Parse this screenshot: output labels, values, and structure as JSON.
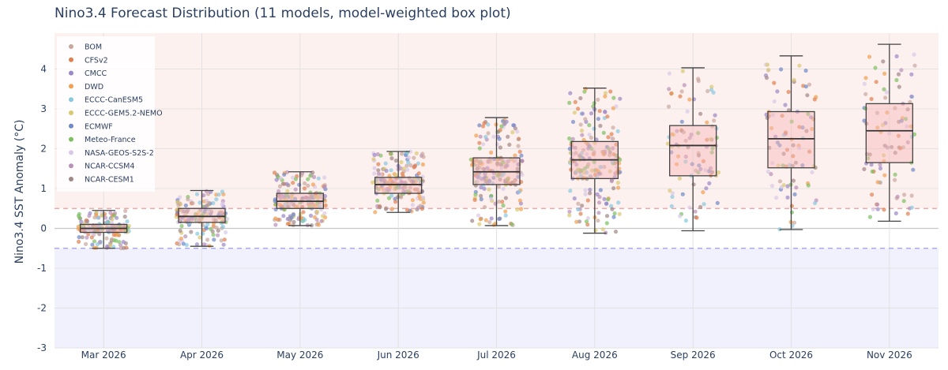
{
  "chart_data": {
    "type": "box",
    "title": "Nino3.4 Forecast Distribution (11 models, model-weighted box plot)",
    "xlabel": "",
    "ylabel": "Nino3.4 SST Anomaly (°C)",
    "ylim": [
      -3,
      4.9
    ],
    "yticks": [
      -3,
      -2,
      -1,
      0,
      1,
      2,
      3,
      4
    ],
    "thresholds": {
      "el_nino": 0.5,
      "la_nina": -0.5
    },
    "categories": [
      "Mar 2026",
      "Apr 2026",
      "May 2026",
      "Jun 2026",
      "Jul 2026",
      "Aug 2026",
      "Sep 2026",
      "Oct 2026",
      "Nov 2026"
    ],
    "boxes": [
      {
        "month": "Mar 2026",
        "whisker_low": -0.5,
        "q1": -0.1,
        "median": 0.0,
        "q3": 0.1,
        "whisker_high": 0.45,
        "n_points": 160
      },
      {
        "month": "Apr 2026",
        "whisker_low": -0.45,
        "q1": 0.15,
        "median": 0.3,
        "q3": 0.5,
        "whisker_high": 0.95,
        "n_points": 160
      },
      {
        "month": "May 2026",
        "whisker_low": 0.07,
        "q1": 0.5,
        "median": 0.68,
        "q3": 0.88,
        "whisker_high": 1.42,
        "n_points": 180
      },
      {
        "month": "Jun 2026",
        "whisker_low": 0.4,
        "q1": 0.88,
        "median": 1.1,
        "q3": 1.28,
        "whisker_high": 1.93,
        "n_points": 180
      },
      {
        "month": "Jul 2026",
        "whisker_low": 0.07,
        "q1": 1.1,
        "median": 1.42,
        "q3": 1.77,
        "whisker_high": 2.78,
        "n_points": 200
      },
      {
        "month": "Aug 2026",
        "whisker_low": -0.12,
        "q1": 1.25,
        "median": 1.72,
        "q3": 2.18,
        "whisker_high": 3.52,
        "n_points": 200
      },
      {
        "month": "Sep 2026",
        "whisker_low": -0.06,
        "q1": 1.32,
        "median": 2.08,
        "q3": 2.58,
        "whisker_high": 4.03,
        "n_points": 90
      },
      {
        "month": "Oct 2026",
        "whisker_low": -0.03,
        "q1": 1.52,
        "median": 2.25,
        "q3": 2.93,
        "whisker_high": 4.33,
        "n_points": 90
      },
      {
        "month": "Nov 2026",
        "whisker_low": 0.18,
        "q1": 1.65,
        "median": 2.45,
        "q3": 3.13,
        "whisker_high": 4.62,
        "n_points": 90
      }
    ],
    "legend": {
      "placement": "top-left",
      "entries": [
        {
          "name": "BOM",
          "color": "#c9a7a0"
        },
        {
          "name": "CFSv2",
          "color": "#e08050"
        },
        {
          "name": "CMCC",
          "color": "#9a88c8"
        },
        {
          "name": "DWD",
          "color": "#f0a050"
        },
        {
          "name": "ECCC-CanESM5",
          "color": "#88c8e0"
        },
        {
          "name": "ECCC-GEM5.2-NEMO",
          "color": "#d8c870"
        },
        {
          "name": "ECMWF",
          "color": "#6e88c8"
        },
        {
          "name": "Meteo-France",
          "color": "#7cbf63"
        },
        {
          "name": "NASA-GEOS-S2S-2",
          "color": "#d8c8e8"
        },
        {
          "name": "NCAR-CCSM4",
          "color": "#b890b8"
        },
        {
          "name": "NCAR-CESM1",
          "color": "#a08888"
        }
      ]
    }
  }
}
